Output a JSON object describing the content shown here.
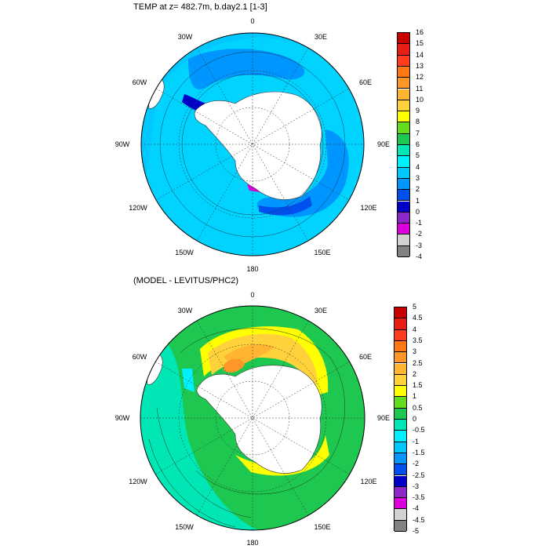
{
  "top_panel": {
    "title": "TEMP at z= 482.7m, b.day2.1 [1-3]",
    "lon_labels": [
      "0",
      "30E",
      "60E",
      "90E",
      "120E",
      "150E",
      "180",
      "150W",
      "120W",
      "90W",
      "60W",
      "30W"
    ],
    "colorbar_labels": [
      "16",
      "15",
      "14",
      "13",
      "12",
      "11",
      "10",
      "9",
      "8",
      "7",
      "6",
      "5",
      "4",
      "3",
      "2",
      "1",
      "0",
      "-1",
      "-2",
      "-3",
      "-4"
    ],
    "colorbar_colors": [
      "#c80000",
      "#e61e14",
      "#ff3c1e",
      "#ff7814",
      "#ff9628",
      "#ffb432",
      "#ffd23c",
      "#ffff00",
      "#64dc1e",
      "#1ec850",
      "#00e6b4",
      "#00f0ff",
      "#00c8ff",
      "#0096ff",
      "#0050f0",
      "#0000c8",
      "#8c28c8",
      "#dc00dc",
      "#d2d2d2",
      "#828282"
    ]
  },
  "bottom_panel": {
    "title": "(MODEL - LEVITUS/PHC2)",
    "lon_labels": [
      "0",
      "30E",
      "60E",
      "90E",
      "120E",
      "150E",
      "180",
      "150W",
      "120W",
      "90W",
      "60W",
      "30W"
    ],
    "colorbar_labels": [
      "5",
      "4.5",
      "4",
      "3.5",
      "3",
      "2.5",
      "2",
      "1.5",
      "1",
      "0.5",
      "0",
      "-0.5",
      "-1",
      "-1.5",
      "-2",
      "-2.5",
      "-3",
      "-3.5",
      "-4",
      "-4.5",
      "-5"
    ],
    "colorbar_colors": [
      "#c80000",
      "#e61e14",
      "#ff3c1e",
      "#ff7814",
      "#ff9628",
      "#ffb432",
      "#ffd23c",
      "#ffff00",
      "#64dc1e",
      "#1ec850",
      "#00e6b4",
      "#00f0ff",
      "#00c8ff",
      "#0096ff",
      "#0050f0",
      "#0000c8",
      "#8c28c8",
      "#dc00dc",
      "#d2d2d2",
      "#828282"
    ]
  },
  "colors": {
    "land": "#ffffff",
    "ocean_top_base": "#00c8ff",
    "ocean_bottom_base": "#1ec850"
  }
}
